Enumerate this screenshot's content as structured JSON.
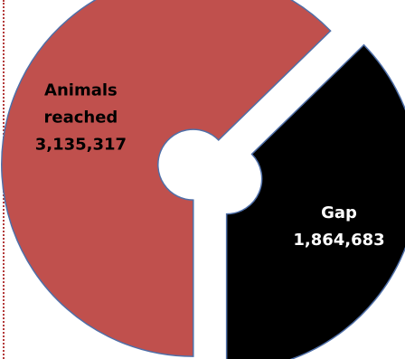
{
  "chart_data": {
    "type": "pie",
    "variant": "donut-exploded",
    "slices": [
      {
        "label_lines": [
          "Animals",
          "reached",
          "3,135,317"
        ],
        "name": "Animals reached",
        "value": 3135317,
        "value_text": "3,135,317",
        "color": "#c0504d",
        "label_color": "#000000"
      },
      {
        "label_lines": [
          "Gap",
          "1,864,683"
        ],
        "name": "Gap",
        "value": 1864683,
        "value_text": "1,864,683",
        "color": "#000000",
        "label_color": "#ffffff"
      }
    ],
    "outline_color": "#4f6fa8",
    "start_angle_deg": 180,
    "direction": "clockwise",
    "legend": "none"
  }
}
